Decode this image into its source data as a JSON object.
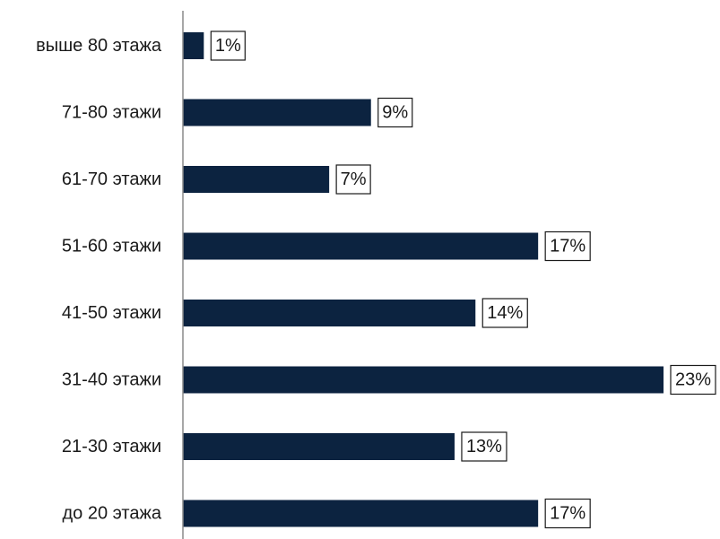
{
  "chart_data": {
    "type": "bar",
    "orientation": "horizontal",
    "categories": [
      "выше 80 этажа",
      "71-80 этажи",
      "61-70 этажи",
      "51-60 этажи",
      "41-50 этажи",
      "31-40 этажи",
      "21-30 этажи",
      "до 20 этажа"
    ],
    "values": [
      1,
      9,
      7,
      17,
      14,
      23,
      13,
      17
    ],
    "value_labels": [
      "1%",
      "9%",
      "7%",
      "17%",
      "14%",
      "23%",
      "13%",
      "17%"
    ],
    "unit": "%",
    "xlim": [
      0,
      23
    ],
    "grid": false,
    "legend": "none",
    "bar_color": "#0c2340"
  }
}
